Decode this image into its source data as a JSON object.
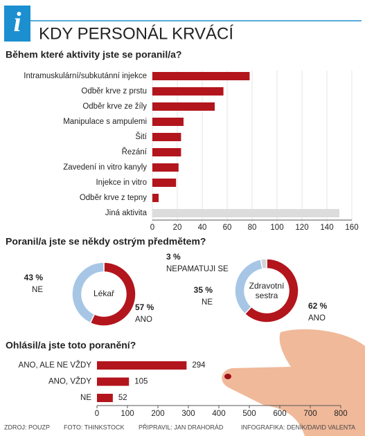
{
  "header": {
    "title": "KDY PERSONÁL KRVÁCÍ"
  },
  "chart_data": [
    {
      "type": "bar",
      "orientation": "horizontal",
      "title": "Během které aktivity jste se poranil/a?",
      "categories": [
        "Intramuskulární/subkutánní injekce",
        "Odběr krve z prstu",
        "Odběr krve ze žíly",
        "Manipulace s ampulemi",
        "Šití",
        "Řezání",
        "Zavedení in vitro kanyly",
        "Injekce in vitro",
        "Odběr krve z tepny",
        "Jiná aktivita"
      ],
      "values": [
        78,
        57,
        50,
        25,
        23,
        23,
        21,
        19,
        5,
        150
      ],
      "colors": [
        "#b3151d",
        "#b3151d",
        "#b3151d",
        "#b3151d",
        "#b3151d",
        "#b3151d",
        "#b3151d",
        "#b3151d",
        "#b3151d",
        "#dcdcdc"
      ],
      "xlim": [
        0,
        160
      ],
      "xticks": [
        0,
        20,
        40,
        60,
        80,
        100,
        120,
        140,
        160
      ],
      "grid": true
    },
    {
      "type": "pie",
      "donut": true,
      "title": "Poranil/a jste se někdy ostrým předmětem?",
      "center_label": "Lékař",
      "categories": [
        "ANO",
        "NE"
      ],
      "values": [
        57,
        43
      ],
      "value_labels": [
        "57 %",
        "43 %"
      ],
      "colors": [
        "#b3151d",
        "#a7c6e6"
      ]
    },
    {
      "type": "pie",
      "donut": true,
      "center_label": "Zdravotní sestra",
      "categories": [
        "ANO",
        "NE",
        "NEPAMATUJI SE"
      ],
      "values": [
        62,
        35,
        3
      ],
      "value_labels": [
        "62 %",
        "35 %",
        "3 %"
      ],
      "colors": [
        "#b3151d",
        "#a7c6e6",
        "#d4d4d4"
      ]
    },
    {
      "type": "bar",
      "orientation": "horizontal",
      "title": "Ohlásil/a jste toto poranění?",
      "categories": [
        "ANO, ALE NE VŽDY",
        "ANO, VŽDY",
        "NE"
      ],
      "values": [
        294,
        105,
        52
      ],
      "color": "#b3151d",
      "xlim": [
        0,
        800
      ],
      "xticks": [
        0,
        100,
        200,
        300,
        400,
        500,
        600,
        700,
        800
      ],
      "grid": false
    }
  ],
  "footer": [
    "ZDROJ: POUZP",
    "FOTO: THINKSTOCK",
    "PŘIPRAVIL: JAN DRAHORÁD",
    "INFOGRAFIKA: DENÍK/DAVID VALENTA"
  ]
}
